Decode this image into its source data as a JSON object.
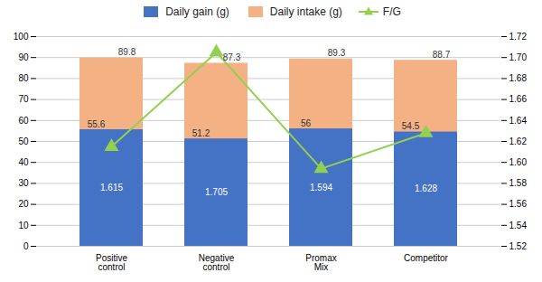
{
  "chart_data": {
    "type": "bar",
    "categories": [
      "Positive\ncontrol",
      "Negative\ncontrol",
      "Promax\nMix",
      "Competitor"
    ],
    "series": [
      {
        "name": "Daily gain (g)",
        "type": "bar",
        "color": "#4472c4",
        "values": [
          55.6,
          51.2,
          56.0,
          54.5
        ]
      },
      {
        "name": "Daily intake (g)",
        "type": "bar",
        "color": "#f4b183",
        "values": [
          89.8,
          87.3,
          89.3,
          88.7
        ]
      },
      {
        "name": "F/G",
        "type": "line",
        "color": "#92d050",
        "marker": "triangle",
        "axis": "y2",
        "values": [
          1.615,
          1.705,
          1.594,
          1.628
        ]
      }
    ],
    "ylim": [
      0,
      100
    ],
    "yticks": [
      0,
      10,
      20,
      30,
      40,
      50,
      60,
      70,
      80,
      90,
      100
    ],
    "y2lim": [
      1.52,
      1.72
    ],
    "y2ticks": [
      1.52,
      1.54,
      1.56,
      1.58,
      {
        "value": 1.6,
        "label": "1.60"
      },
      1.62,
      1.64,
      1.66,
      1.68,
      {
        "value": 1.7,
        "label": "1.70"
      },
      1.72
    ],
    "grid": true,
    "legend": "top",
    "data_labels": true
  }
}
